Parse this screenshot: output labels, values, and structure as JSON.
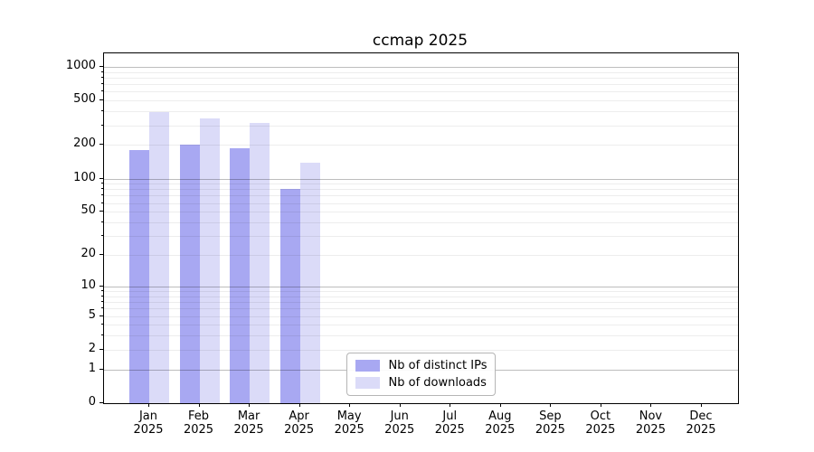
{
  "figure": {
    "background": "#ffffff"
  },
  "chart_data": {
    "type": "bar",
    "title": "ccmap 2025",
    "xlabel": "",
    "ylabel": "",
    "categories": [
      "Jan 2025",
      "Feb 2025",
      "Mar 2025",
      "Apr 2025",
      "May 2025",
      "Jun 2025",
      "Jul 2025",
      "Aug 2025",
      "Sep 2025",
      "Oct 2025",
      "Nov 2025",
      "Dec 2025"
    ],
    "series": [
      {
        "name": "Nb of distinct IPs",
        "color": "#a8a8f2",
        "values": [
          182,
          200,
          186,
          80,
          0,
          0,
          0,
          0,
          0,
          0,
          0,
          0
        ]
      },
      {
        "name": "Nb of downloads",
        "color": "#dbdbf8",
        "values": [
          398,
          347,
          315,
          138,
          0,
          0,
          0,
          0,
          0,
          0,
          0,
          0
        ]
      }
    ],
    "yscale": "log1p (symlog-like, 0 shown at baseline)",
    "ylim": [
      0,
      1330
    ],
    "y_tick_values": [
      0,
      1,
      2,
      5,
      10,
      20,
      50,
      100,
      200,
      500,
      1000
    ],
    "y_tick_labels": [
      "0",
      "1",
      "2",
      "5",
      "10",
      "20",
      "50",
      "100",
      "200",
      "500",
      "1000"
    ],
    "y_major_grid_values": [
      1,
      10,
      100,
      1000
    ],
    "y_minor_grid_values": [
      2,
      3,
      4,
      5,
      6,
      7,
      8,
      9,
      20,
      30,
      40,
      50,
      60,
      70,
      80,
      90,
      200,
      300,
      400,
      500,
      600,
      700,
      800,
      900
    ],
    "grid": "horizontal minor+major gridlines, drawn above bars",
    "legend": {
      "position": "lower center inside axes",
      "entries": [
        "Nb of distinct IPs",
        "Nb of downloads"
      ]
    }
  }
}
